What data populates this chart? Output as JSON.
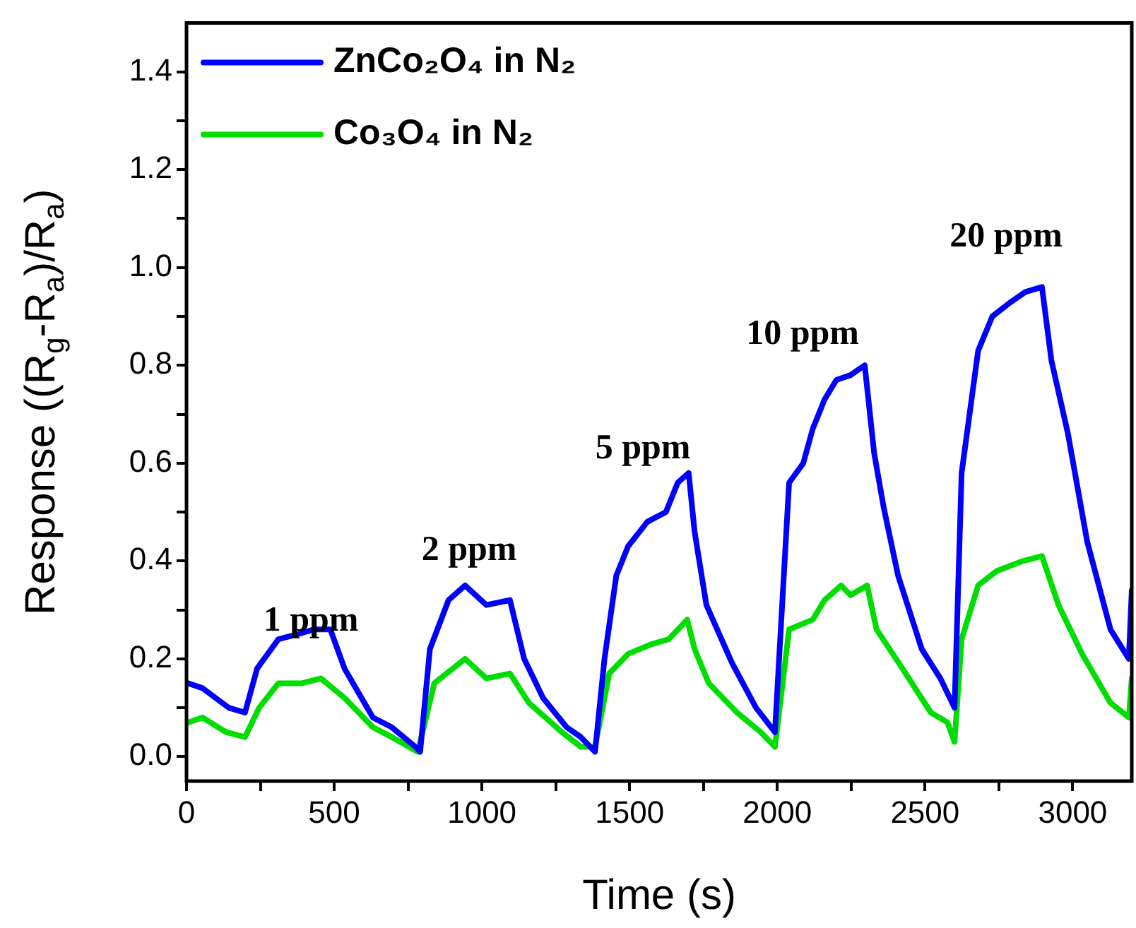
{
  "chart_data": {
    "type": "line",
    "xlabel": "Time (s)",
    "ylabel": "Response ((R$_{g}$-R$_{a}$)/R$_{a}$)",
    "xlim": [
      0,
      3200
    ],
    "ylim": [
      -0.05,
      1.5
    ],
    "xticks": [
      0,
      {
        "value": 250,
        "label": null
      },
      500,
      {
        "value": 750,
        "label": null
      },
      1000,
      {
        "value": 1250,
        "label": null
      },
      1500,
      {
        "value": 1750,
        "label": null
      },
      2000,
      {
        "value": 2250,
        "label": null
      },
      2500,
      {
        "value": 2750,
        "label": null
      },
      3000
    ],
    "yticks": [
      {
        "value": 0,
        "label": "0.0"
      },
      {
        "value": 0.1,
        "label": null
      },
      0.2,
      {
        "value": 0.3,
        "label": null
      },
      0.4,
      {
        "value": 0.5,
        "label": null
      },
      0.6,
      {
        "value": 0.7,
        "label": null
      },
      0.8,
      {
        "value": 0.9,
        "label": null
      },
      {
        "value": 1,
        "label": "1.0"
      },
      {
        "value": 1.1,
        "label": null
      },
      1.2,
      {
        "value": 1.3,
        "label": null
      },
      1.4
    ],
    "legend": "top left",
    "marker": "none",
    "series": [
      {
        "name": "ZnCo₂O₄ in N₂",
        "color": "#0000ff",
        "x": [
          6,
          54,
          143,
          198,
          239,
          311,
          375,
          431,
          487,
          535,
          631,
          695,
          775,
          791,
          824,
          887,
          943,
          1015,
          1095,
          1143,
          1207,
          1287,
          1335,
          1383,
          1415,
          1455,
          1495,
          1560,
          1623,
          1663,
          1700,
          1720,
          1760,
          1848,
          1928,
          1992,
          2040,
          2088,
          2120,
          2160,
          2200,
          2248,
          2296,
          2328,
          2360,
          2409,
          2489,
          2552,
          2600,
          2624,
          2680,
          2728,
          2792,
          2840,
          2896,
          2928,
          2984,
          3049,
          3128,
          3190,
          3200
        ],
        "values": [
          0.15,
          0.14,
          0.1,
          0.09,
          0.18,
          0.24,
          0.25,
          0.26,
          0.26,
          0.18,
          0.08,
          0.06,
          0.02,
          0.01,
          0.22,
          0.32,
          0.35,
          0.31,
          0.32,
          0.2,
          0.12,
          0.06,
          0.04,
          0.01,
          0.2,
          0.37,
          0.43,
          0.48,
          0.5,
          0.56,
          0.58,
          0.46,
          0.31,
          0.19,
          0.1,
          0.05,
          0.56,
          0.6,
          0.67,
          0.73,
          0.77,
          0.78,
          0.8,
          0.62,
          0.51,
          0.37,
          0.22,
          0.16,
          0.1,
          0.58,
          0.83,
          0.9,
          0.93,
          0.95,
          0.96,
          0.81,
          0.66,
          0.44,
          0.26,
          0.2,
          0.34
        ]
      },
      {
        "name": "Co₃O₄ in N₂",
        "color": "#00dd00",
        "x": [
          6,
          54,
          134,
          198,
          246,
          311,
          391,
          455,
          535,
          631,
          695,
          783,
          839,
          943,
          1015,
          1095,
          1159,
          1271,
          1335,
          1383,
          1431,
          1495,
          1575,
          1632,
          1695,
          1720,
          1768,
          1864,
          1944,
          1992,
          2040,
          2120,
          2160,
          2216,
          2248,
          2304,
          2336,
          2424,
          2520,
          2576,
          2600,
          2624,
          2680,
          2744,
          2832,
          2896,
          2952,
          3032,
          3128,
          3190,
          3200
        ],
        "values": [
          0.07,
          0.08,
          0.05,
          0.04,
          0.1,
          0.15,
          0.15,
          0.16,
          0.12,
          0.06,
          0.04,
          0.01,
          0.15,
          0.2,
          0.16,
          0.17,
          0.11,
          0.05,
          0.02,
          0.02,
          0.17,
          0.21,
          0.23,
          0.24,
          0.28,
          0.22,
          0.15,
          0.09,
          0.05,
          0.02,
          0.26,
          0.28,
          0.32,
          0.35,
          0.33,
          0.35,
          0.26,
          0.18,
          0.09,
          0.07,
          0.03,
          0.24,
          0.35,
          0.38,
          0.4,
          0.41,
          0.31,
          0.21,
          0.11,
          0.08,
          0.16
        ]
      }
    ],
    "annotations": [
      "1 ppm",
      "2 ppm",
      "5 ppm",
      "10 ppm",
      "20 ppm"
    ]
  }
}
